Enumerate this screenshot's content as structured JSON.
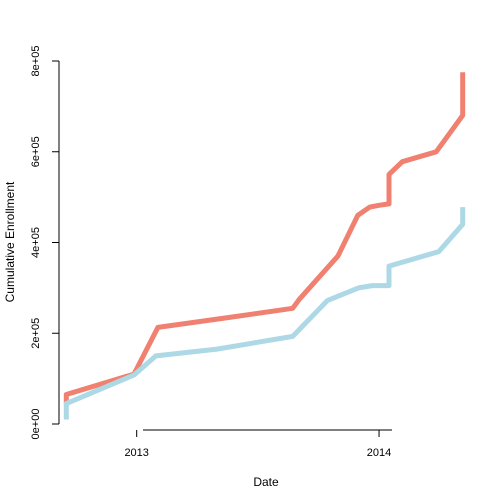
{
  "chart_data": {
    "type": "line",
    "title": "",
    "xlabel": "Date",
    "ylabel": "Cumulative Enrollment",
    "x_ticks": [
      {
        "date": "2013-01-01",
        "label": "2013"
      },
      {
        "date": "2014-01-01",
        "label": "2014"
      }
    ],
    "y_ticks": [
      {
        "value": 0,
        "label": "0e+00"
      },
      {
        "value": 200000,
        "label": "2e+05"
      },
      {
        "value": 400000,
        "label": "4e+05"
      },
      {
        "value": 600000,
        "label": "6e+05"
      },
      {
        "value": 800000,
        "label": "8e+05"
      }
    ],
    "xlim": [
      "2012-09-06",
      "2014-05-24"
    ],
    "ylim": [
      0,
      800000
    ],
    "grid": false,
    "legend": "none",
    "series": [
      {
        "color": "#f08070",
        "points": [
          [
            "2012-09-17",
            45000
          ],
          [
            "2012-09-17",
            65000
          ],
          [
            "2012-12-28",
            110000
          ],
          [
            "2013-02-02",
            213000
          ],
          [
            "2013-05-21",
            235000
          ],
          [
            "2013-08-24",
            255000
          ],
          [
            "2013-09-03",
            275000
          ],
          [
            "2013-10-31",
            370000
          ],
          [
            "2013-11-30",
            460000
          ],
          [
            "2013-12-18",
            478000
          ],
          [
            "2014-01-01",
            482000
          ],
          [
            "2014-01-16",
            485000
          ],
          [
            "2014-01-16",
            550000
          ],
          [
            "2014-02-05",
            578000
          ],
          [
            "2014-03-28",
            600000
          ],
          [
            "2014-05-07",
            680000
          ],
          [
            "2014-05-07",
            775000
          ]
        ]
      },
      {
        "color": "#add8e6",
        "points": [
          [
            "2012-09-17",
            10000
          ],
          [
            "2012-09-17",
            45000
          ],
          [
            "2012-12-28",
            108000
          ],
          [
            "2013-01-30",
            150000
          ],
          [
            "2013-05-02",
            165000
          ],
          [
            "2013-08-24",
            193000
          ],
          [
            "2013-10-15",
            272000
          ],
          [
            "2013-12-01",
            300000
          ],
          [
            "2013-12-22",
            305000
          ],
          [
            "2014-01-16",
            305000
          ],
          [
            "2014-01-16",
            348000
          ],
          [
            "2014-04-01",
            380000
          ],
          [
            "2014-05-07",
            440000
          ],
          [
            "2014-05-07",
            478000
          ]
        ]
      }
    ]
  }
}
